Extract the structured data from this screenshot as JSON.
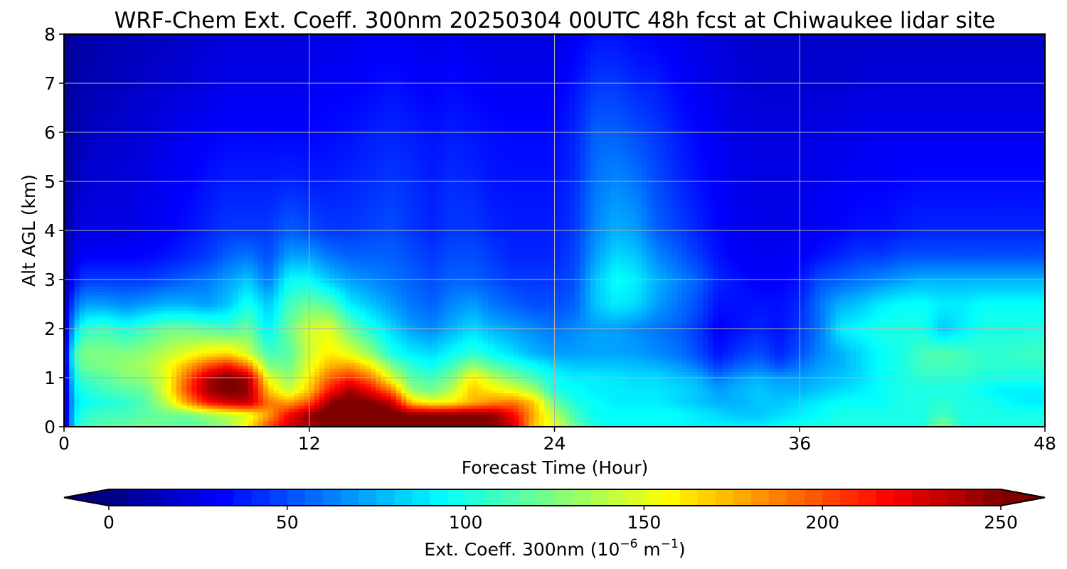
{
  "chart_data": {
    "type": "heatmap",
    "title": "WRF-Chem Ext. Coeff. 300nm  20250304 00UTC 48h fcst at Chiwaukee lidar site",
    "xlabel": "Forecast Time (Hour)",
    "ylabel": "Alt AGL (km)",
    "xlim": [
      0,
      48
    ],
    "ylim": [
      0,
      8
    ],
    "x_ticks": [
      "0",
      "12",
      "24",
      "36",
      "48"
    ],
    "y_ticks": [
      "0",
      "1",
      "2",
      "3",
      "4",
      "5",
      "6",
      "7",
      "8"
    ],
    "grid": true,
    "colormap": "jet",
    "colorbar": {
      "label_main": "Ext. Coeff. 300nm  (10",
      "label_exp1": "−6",
      "label_mid": " m",
      "label_exp2": "−1",
      "label_end": ")",
      "orientation": "horizontal",
      "placement": "bottom",
      "range": [
        0,
        250
      ],
      "ticks": [
        "0",
        "50",
        "100",
        "150",
        "200",
        "250"
      ],
      "extend": "both"
    },
    "x_hours": [
      0,
      0.5,
      1,
      2,
      3,
      4,
      5,
      6,
      7,
      8,
      9,
      10,
      11,
      12,
      13,
      14,
      15,
      16,
      17,
      18,
      19,
      20,
      21,
      22,
      23,
      24,
      25,
      26,
      27,
      28,
      29,
      30,
      31,
      32,
      33,
      34,
      35,
      36,
      37,
      38,
      39,
      40,
      41,
      42,
      43,
      44,
      45,
      46,
      47,
      48
    ],
    "z_km": [
      0,
      0.25,
      0.5,
      0.75,
      1.0,
      1.25,
      1.5,
      2.0,
      2.5,
      3.0,
      3.5,
      4.0,
      5.0,
      6.0,
      7.0,
      8.0
    ],
    "values_by_height": [
      [
        10,
        90,
        110,
        115,
        120,
        125,
        120,
        115,
        120,
        130,
        160,
        200,
        230,
        240,
        250,
        260,
        260,
        260,
        260,
        260,
        260,
        255,
        250,
        230,
        170,
        150,
        120,
        100,
        95,
        95,
        95,
        92,
        90,
        90,
        90,
        90,
        95,
        100,
        100,
        100,
        100,
        100,
        100,
        100,
        130,
        100,
        100,
        100,
        100,
        100
      ],
      [
        10,
        90,
        105,
        110,
        110,
        115,
        120,
        120,
        130,
        140,
        150,
        180,
        220,
        245,
        260,
        265,
        265,
        260,
        250,
        250,
        250,
        250,
        245,
        220,
        175,
        140,
        110,
        95,
        95,
        95,
        95,
        95,
        90,
        85,
        80,
        80,
        85,
        90,
        95,
        100,
        100,
        100,
        100,
        100,
        110,
        100,
        100,
        100,
        100,
        100
      ],
      [
        10,
        85,
        95,
        100,
        105,
        115,
        140,
        180,
        215,
        230,
        235,
        190,
        180,
        200,
        245,
        260,
        250,
        235,
        170,
        155,
        160,
        175,
        185,
        190,
        170,
        120,
        100,
        95,
        90,
        90,
        90,
        85,
        80,
        75,
        75,
        80,
        80,
        85,
        90,
        95,
        95,
        95,
        100,
        100,
        105,
        100,
        100,
        95,
        90,
        90
      ],
      [
        10,
        90,
        100,
        110,
        115,
        120,
        150,
        200,
        240,
        255,
        245,
        170,
        140,
        170,
        215,
        240,
        220,
        190,
        130,
        120,
        140,
        170,
        160,
        150,
        135,
        100,
        95,
        90,
        90,
        88,
        88,
        85,
        80,
        70,
        75,
        80,
        75,
        75,
        80,
        85,
        90,
        95,
        100,
        100,
        100,
        100,
        95,
        90,
        90,
        90
      ],
      [
        10,
        95,
        110,
        115,
        125,
        130,
        150,
        195,
        235,
        255,
        240,
        150,
        130,
        160,
        195,
        210,
        190,
        150,
        115,
        110,
        125,
        160,
        140,
        125,
        110,
        95,
        90,
        90,
        88,
        85,
        85,
        80,
        75,
        60,
        70,
        75,
        70,
        70,
        75,
        80,
        85,
        95,
        100,
        105,
        105,
        105,
        100,
        100,
        100,
        100
      ],
      [
        10,
        105,
        120,
        125,
        130,
        135,
        150,
        175,
        200,
        215,
        190,
        125,
        120,
        150,
        175,
        180,
        160,
        125,
        105,
        95,
        110,
        130,
        115,
        105,
        95,
        85,
        80,
        80,
        80,
        78,
        75,
        70,
        60,
        45,
        55,
        60,
        50,
        60,
        70,
        75,
        85,
        95,
        100,
        110,
        110,
        110,
        105,
        105,
        105,
        105
      ],
      [
        10,
        110,
        125,
        125,
        125,
        130,
        140,
        150,
        160,
        165,
        145,
        110,
        115,
        145,
        160,
        150,
        130,
        100,
        90,
        85,
        95,
        105,
        95,
        85,
        75,
        70,
        70,
        72,
        72,
        70,
        65,
        60,
        50,
        35,
        45,
        50,
        40,
        50,
        65,
        75,
        85,
        95,
        100,
        110,
        115,
        110,
        105,
        105,
        108,
        110
      ],
      [
        10,
        80,
        105,
        110,
        100,
        110,
        120,
        120,
        115,
        110,
        120,
        90,
        120,
        145,
        150,
        120,
        100,
        85,
        70,
        65,
        75,
        85,
        75,
        70,
        65,
        60,
        65,
        70,
        70,
        65,
        60,
        55,
        45,
        30,
        35,
        40,
        35,
        45,
        60,
        90,
        95,
        100,
        100,
        100,
        80,
        90,
        100,
        100,
        100,
        100
      ],
      [
        10,
        55,
        70,
        70,
        65,
        70,
        75,
        75,
        70,
        80,
        100,
        80,
        110,
        120,
        115,
        90,
        80,
        70,
        60,
        55,
        65,
        70,
        60,
        55,
        50,
        50,
        55,
        80,
        90,
        85,
        70,
        60,
        50,
        35,
        35,
        35,
        35,
        40,
        60,
        75,
        80,
        90,
        95,
        95,
        90,
        90,
        95,
        95,
        95,
        95
      ],
      [
        5,
        35,
        45,
        45,
        45,
        45,
        50,
        55,
        60,
        70,
        80,
        60,
        95,
        95,
        80,
        70,
        65,
        60,
        55,
        50,
        55,
        55,
        50,
        45,
        45,
        45,
        50,
        80,
        95,
        90,
        75,
        65,
        55,
        40,
        35,
        30,
        30,
        35,
        50,
        55,
        60,
        65,
        70,
        75,
        75,
        75,
        75,
        75,
        75,
        75
      ],
      [
        5,
        25,
        30,
        30,
        30,
        32,
        35,
        40,
        45,
        55,
        60,
        50,
        70,
        70,
        60,
        55,
        55,
        55,
        50,
        45,
        50,
        50,
        45,
        40,
        40,
        40,
        48,
        70,
        85,
        80,
        65,
        55,
        45,
        35,
        30,
        28,
        28,
        30,
        35,
        40,
        45,
        45,
        50,
        50,
        50,
        50,
        50,
        50,
        50,
        50
      ],
      [
        5,
        20,
        25,
        25,
        25,
        28,
        30,
        35,
        40,
        45,
        45,
        45,
        55,
        50,
        45,
        45,
        48,
        50,
        45,
        40,
        45,
        45,
        40,
        38,
        38,
        38,
        45,
        65,
        75,
        70,
        55,
        48,
        40,
        32,
        28,
        26,
        26,
        27,
        30,
        32,
        35,
        35,
        38,
        40,
        40,
        40,
        40,
        40,
        40,
        40
      ],
      [
        5,
        15,
        20,
        22,
        22,
        25,
        28,
        30,
        35,
        38,
        38,
        38,
        40,
        38,
        38,
        40,
        42,
        45,
        42,
        38,
        42,
        40,
        36,
        35,
        35,
        35,
        42,
        60,
        65,
        60,
        50,
        42,
        35,
        30,
        27,
        25,
        25,
        25,
        27,
        28,
        30,
        30,
        32,
        33,
        33,
        33,
        33,
        33,
        33,
        33
      ],
      [
        5,
        12,
        15,
        18,
        20,
        22,
        25,
        28,
        30,
        32,
        32,
        32,
        32,
        32,
        33,
        35,
        38,
        40,
        38,
        35,
        38,
        36,
        34,
        33,
        33,
        33,
        40,
        55,
        55,
        50,
        45,
        38,
        32,
        28,
        25,
        24,
        24,
        24,
        25,
        26,
        27,
        28,
        28,
        28,
        28,
        28,
        28,
        28,
        28,
        28
      ],
      [
        3,
        10,
        12,
        14,
        16,
        18,
        20,
        22,
        24,
        26,
        26,
        26,
        26,
        28,
        30,
        30,
        32,
        35,
        32,
        30,
        33,
        30,
        28,
        28,
        28,
        28,
        35,
        45,
        45,
        40,
        38,
        32,
        28,
        25,
        22,
        20,
        20,
        20,
        20,
        20,
        22,
        22,
        22,
        22,
        22,
        22,
        22,
        22,
        22,
        22
      ],
      [
        3,
        8,
        10,
        12,
        14,
        15,
        16,
        18,
        20,
        22,
        22,
        22,
        22,
        24,
        25,
        25,
        28,
        28,
        27,
        25,
        27,
        25,
        24,
        24,
        24,
        24,
        28,
        35,
        35,
        32,
        30,
        27,
        24,
        22,
        20,
        18,
        18,
        18,
        18,
        18,
        18,
        18,
        18,
        18,
        18,
        18,
        18,
        18,
        18,
        18
      ]
    ]
  }
}
